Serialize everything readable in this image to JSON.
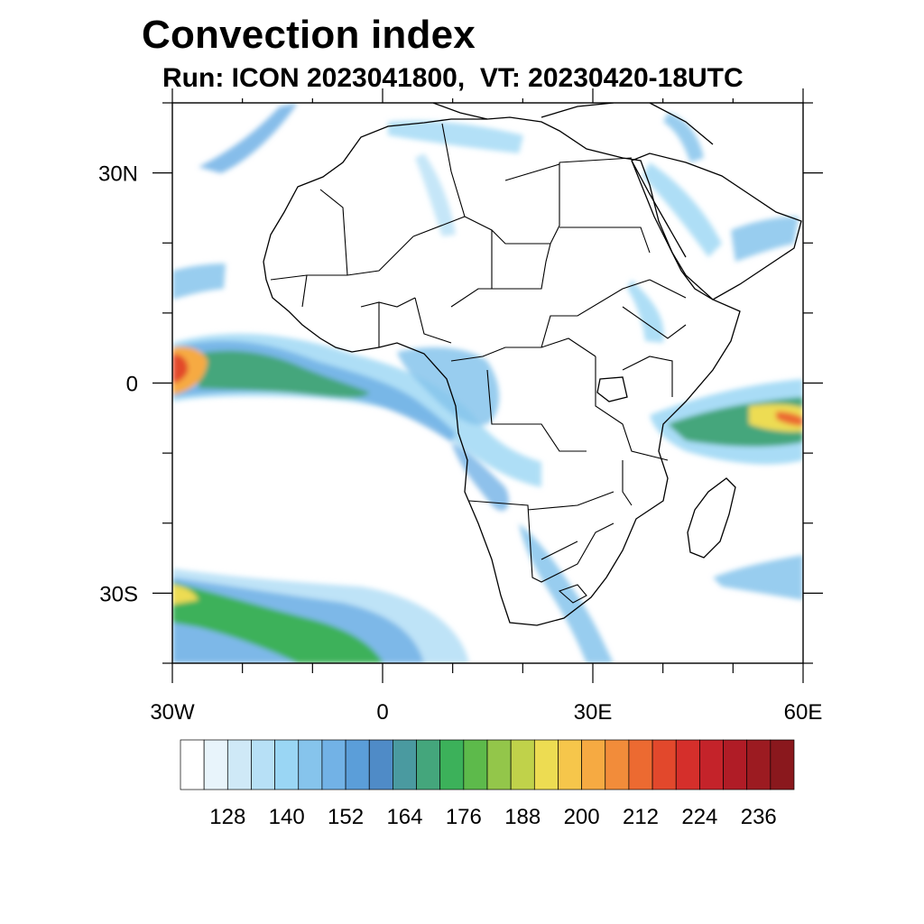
{
  "title": "Convection index",
  "subtitle": "Run: ICON 2023041800,  VT: 20230420-18UTC",
  "map": {
    "region": "Africa",
    "projection": "lat-lon",
    "lon_range": [
      -30,
      60
    ],
    "lat_range": [
      -40,
      40
    ],
    "lat_ticks": [
      {
        "value": 30,
        "label": "30N"
      },
      {
        "value": 0,
        "label": "0"
      },
      {
        "value": -30,
        "label": "30S"
      }
    ],
    "lon_ticks": [
      {
        "value": -30,
        "label": "30W"
      },
      {
        "value": 0,
        "label": "0"
      },
      {
        "value": 30,
        "label": "30E"
      },
      {
        "value": 60,
        "label": "60E"
      }
    ]
  },
  "colorbar": {
    "labels": [
      "128",
      "140",
      "152",
      "164",
      "176",
      "188",
      "200",
      "212",
      "224",
      "236"
    ],
    "colors": [
      "#ffffff",
      "#e8f4fb",
      "#cfe9f7",
      "#b7e0f6",
      "#9ad6f4",
      "#86c4ec",
      "#72b2e6",
      "#5b9ed9",
      "#4f8bc7",
      "#4a9aa0",
      "#44a67c",
      "#3cb15a",
      "#5dba4b",
      "#93c64a",
      "#c0d24a",
      "#eddc52",
      "#f6c64b",
      "#f6aa42",
      "#f28c3a",
      "#ec6a31",
      "#e2482c",
      "#d52f2b",
      "#c4232a",
      "#b01c26",
      "#9c1b21",
      "#8a181d"
    ]
  }
}
